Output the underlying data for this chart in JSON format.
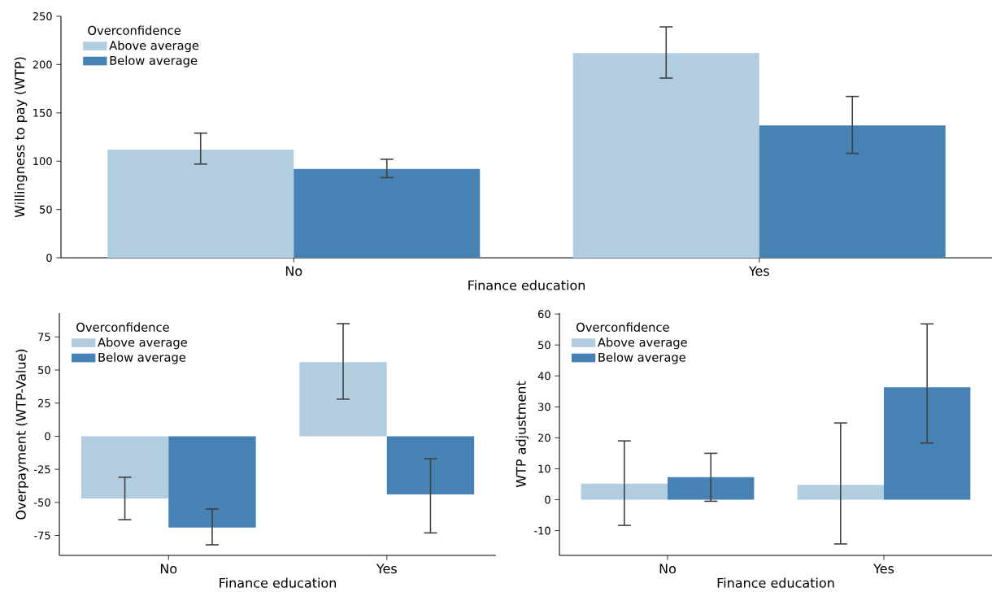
{
  "chart_data": [
    {
      "type": "bar",
      "categories": [
        "No",
        "Yes"
      ],
      "xlabel": "Finance education",
      "ylabel": "Willingness to pay (WTP)",
      "legend_title": "Overconfidence",
      "legend": "top left",
      "ylim": [
        0,
        250
      ],
      "yticks": [
        0,
        50,
        100,
        150,
        200,
        250
      ],
      "series": [
        {
          "name": "Above average",
          "color": "#b3cde0",
          "values": [
            112,
            212
          ],
          "errors": [
            [
              97,
              129
            ],
            [
              186,
              239
            ]
          ]
        },
        {
          "name": "Below average",
          "color": "#4682b4",
          "values": [
            92,
            137
          ],
          "errors": [
            [
              83,
              102
            ],
            [
              108,
              167
            ]
          ]
        }
      ]
    },
    {
      "type": "bar",
      "categories": [
        "No",
        "Yes"
      ],
      "xlabel": "Finance education",
      "ylabel": "Overpayment (WTP-Value)",
      "legend_title": "Overconfidence",
      "legend": "top left",
      "ylim": [
        -90,
        93
      ],
      "yticks": [
        -75,
        -50,
        -25,
        0,
        25,
        50,
        75
      ],
      "series": [
        {
          "name": "Above average",
          "color": "#b3cde0",
          "values": [
            -47,
            56
          ],
          "errors": [
            [
              -63,
              -31
            ],
            [
              28,
              85
            ]
          ]
        },
        {
          "name": "Below average",
          "color": "#4682b4",
          "values": [
            -69,
            -44
          ],
          "errors": [
            [
              -82,
              -55
            ],
            [
              -73,
              -17
            ]
          ]
        }
      ]
    },
    {
      "type": "bar",
      "categories": [
        "No",
        "Yes"
      ],
      "xlabel": "Finance education",
      "ylabel": "WTP adjustment",
      "legend_title": "Overconfidence",
      "legend": "top left",
      "ylim": [
        -18,
        60.3
      ],
      "yticks": [
        -10,
        0,
        10,
        20,
        30,
        40,
        50,
        60
      ],
      "series": [
        {
          "name": "Above average",
          "color": "#b3cde0",
          "values": [
            5.2,
            4.8
          ],
          "errors": [
            [
              -8.3,
              19
            ],
            [
              -14.3,
              24.8
            ]
          ]
        },
        {
          "name": "Below average",
          "color": "#4682b4",
          "values": [
            7.3,
            36.3
          ],
          "errors": [
            [
              -0.5,
              15
            ],
            [
              18.3,
              56.8
            ]
          ]
        }
      ]
    }
  ]
}
